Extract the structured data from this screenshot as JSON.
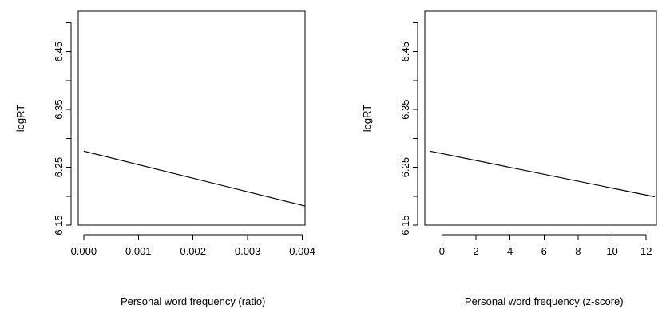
{
  "chart_data": [
    {
      "type": "line",
      "xlabel": "Personal word frequency (ratio)",
      "ylabel": "logRT",
      "xlim": [
        -0.0001,
        0.00405
      ],
      "ylim": [
        6.15,
        6.52
      ],
      "xticks": [
        0.0,
        0.001,
        0.002,
        0.003,
        0.004
      ],
      "xtick_labels": [
        "0.000",
        "0.001",
        "0.002",
        "0.003",
        "0.004"
      ],
      "yticks": [
        6.15,
        6.25,
        6.35,
        6.45
      ],
      "ytick_labels": [
        "6.15",
        "6.25",
        "6.35",
        "6.45"
      ],
      "yminor_ticks": [
        6.2,
        6.3,
        6.4,
        6.5
      ],
      "x": [
        0.0,
        0.00405
      ],
      "y": [
        6.278,
        6.183
      ]
    },
    {
      "type": "line",
      "xlabel": "Personal word frequency (z-score)",
      "ylabel": "logRT",
      "xlim": [
        -1.0,
        12.6
      ],
      "ylim": [
        6.15,
        6.52
      ],
      "xticks": [
        0,
        2,
        4,
        6,
        8,
        10,
        12
      ],
      "xtick_labels": [
        "0",
        "2",
        "4",
        "6",
        "8",
        "10",
        "12"
      ],
      "yticks": [
        6.15,
        6.25,
        6.35,
        6.45
      ],
      "ytick_labels": [
        "6.15",
        "6.25",
        "6.35",
        "6.45"
      ],
      "yminor_ticks": [
        6.2,
        6.3,
        6.4,
        6.5
      ],
      "x": [
        -0.7,
        12.5
      ],
      "y": [
        6.278,
        6.199
      ]
    }
  ]
}
